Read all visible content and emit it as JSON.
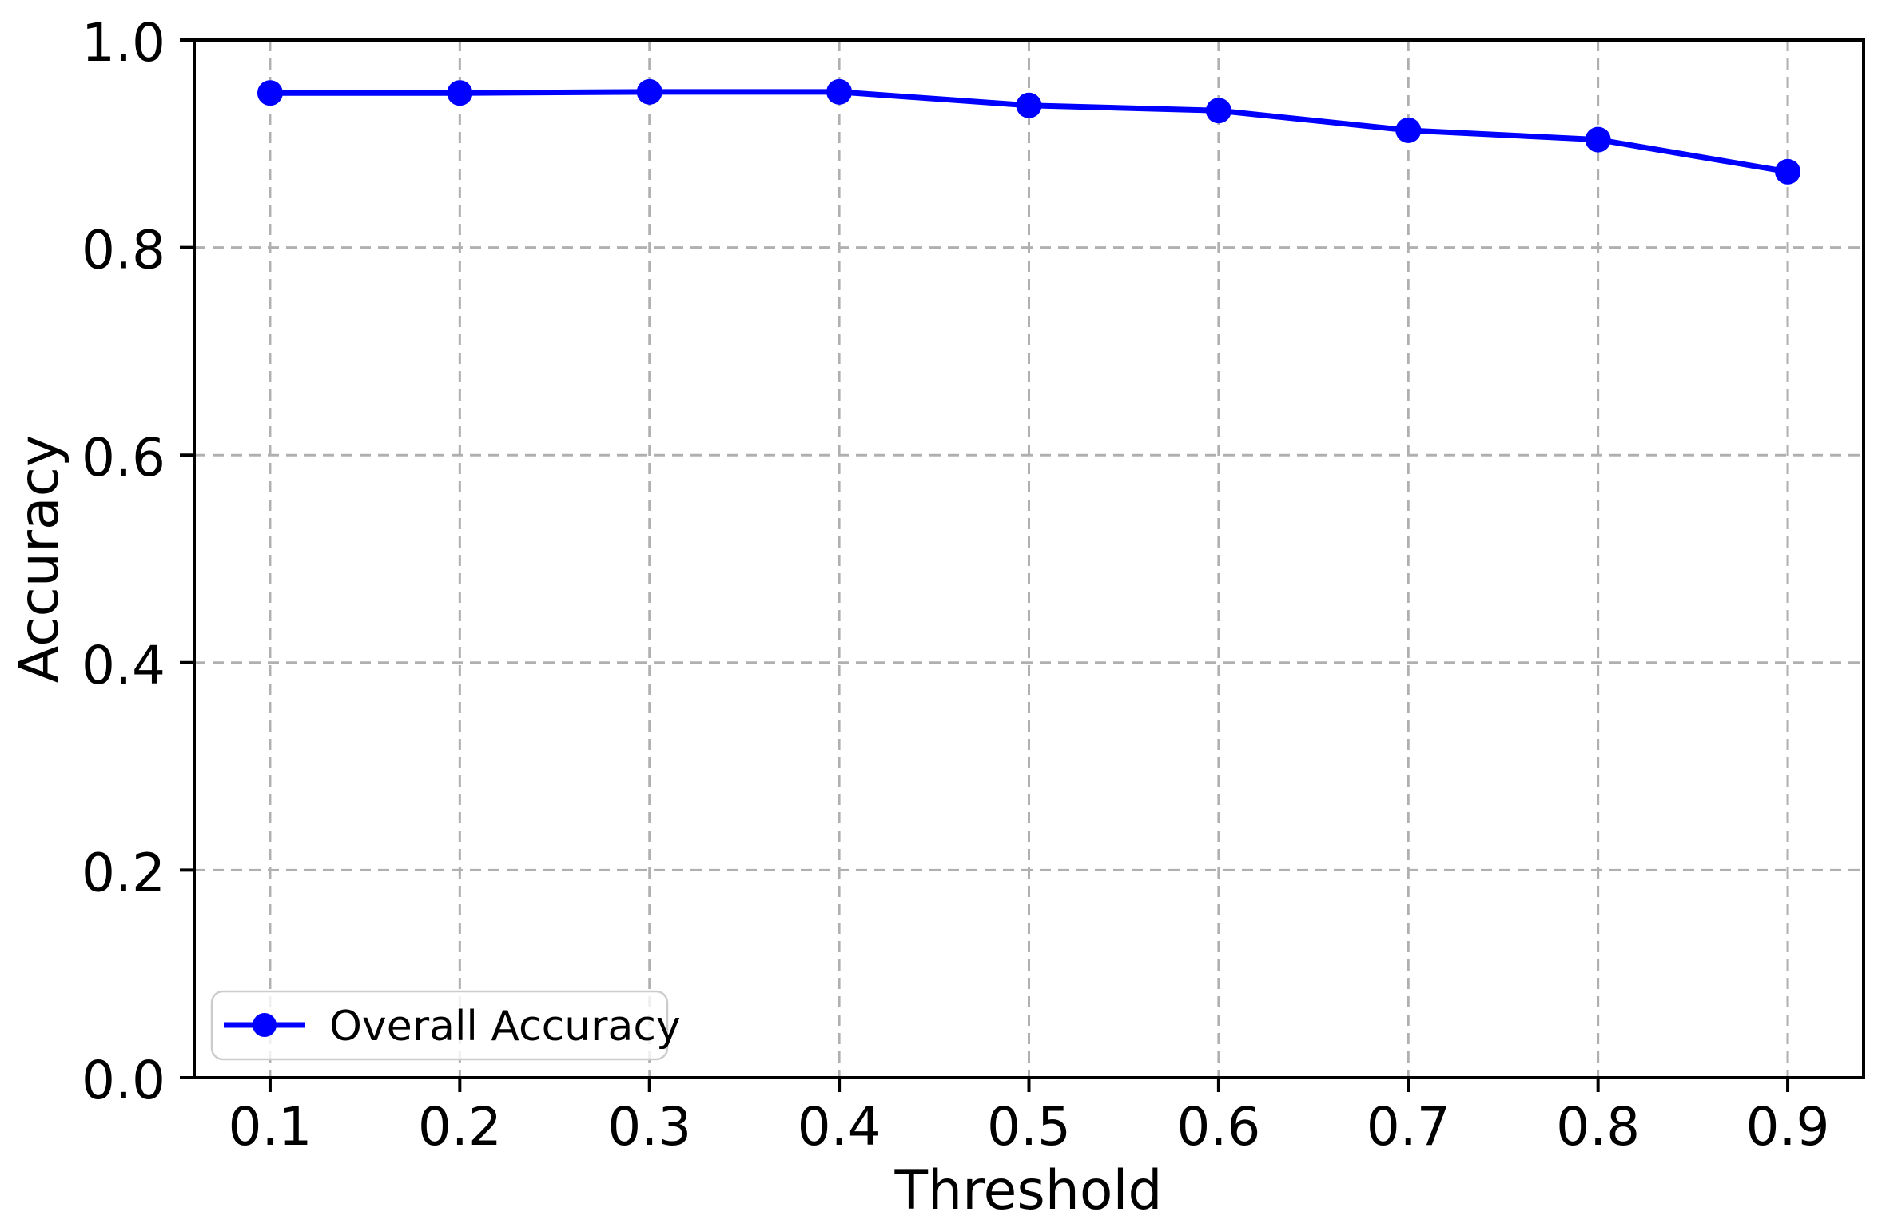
{
  "figure": {
    "background": "#ffffff"
  },
  "chart_data": {
    "type": "line",
    "title": "",
    "xlabel": "Threshold",
    "ylabel": "Accuracy",
    "x": [
      0.1,
      0.2,
      0.3,
      0.4,
      0.5,
      0.6,
      0.7,
      0.8,
      0.9
    ],
    "series": [
      {
        "name": "Overall Accuracy",
        "color": "#0000ff",
        "marker": "circle",
        "values": [
          0.949,
          0.949,
          0.95,
          0.95,
          0.937,
          0.932,
          0.913,
          0.904,
          0.873
        ]
      }
    ],
    "xticks": [
      0.1,
      0.2,
      0.3,
      0.4,
      0.5,
      0.6,
      0.7,
      0.8,
      0.9
    ],
    "yticks": [
      0.0,
      0.2,
      0.4,
      0.6,
      0.8,
      1.0
    ],
    "xlim": [
      0.06,
      0.94
    ],
    "ylim": [
      0.0,
      1.0
    ],
    "grid": true,
    "grid_style": "dashed",
    "grid_color": "#b0b0b0",
    "spine_color": "#000000",
    "legend": {
      "position": "lower-left",
      "labels": [
        "Overall Accuracy"
      ]
    }
  }
}
